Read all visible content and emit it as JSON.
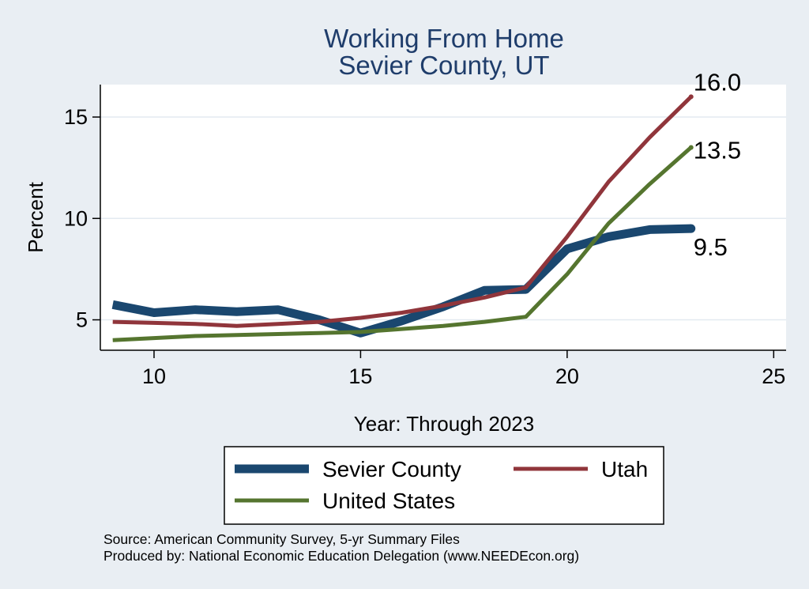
{
  "chart_data": {
    "type": "line",
    "title": [
      "Working From Home",
      "Sevier County, UT"
    ],
    "xlabel": "Year: Through 2023",
    "ylabel": "Percent",
    "xlim": [
      8.7,
      25.3
    ],
    "ylim": [
      3.5,
      16.6
    ],
    "xticks": [
      10,
      15,
      20,
      25
    ],
    "yticks": [
      5,
      10,
      15
    ],
    "grid": true,
    "legend_position": "bottom",
    "x": [
      9,
      10,
      11,
      12,
      13,
      14,
      15,
      16,
      17,
      18,
      19,
      20,
      21,
      22,
      23
    ],
    "series": [
      {
        "name": "Sevier County",
        "color": "#1a476f",
        "width": 11,
        "values": [
          5.75,
          5.35,
          5.5,
          5.4,
          5.5,
          5.0,
          4.35,
          4.95,
          5.65,
          6.45,
          6.5,
          8.5,
          9.1,
          9.45,
          9.5
        ],
        "end_label": "9.5"
      },
      {
        "name": "Utah",
        "color": "#90353b",
        "width": 5,
        "values": [
          4.9,
          4.85,
          4.8,
          4.7,
          4.8,
          4.9,
          5.1,
          5.35,
          5.7,
          6.1,
          6.6,
          9.1,
          11.8,
          14.0,
          16.0
        ],
        "end_label": "16.0"
      },
      {
        "name": "United States",
        "color": "#55752f",
        "width": 5,
        "values": [
          4.0,
          4.1,
          4.2,
          4.25,
          4.3,
          4.35,
          4.4,
          4.55,
          4.7,
          4.9,
          5.15,
          7.25,
          9.75,
          11.7,
          13.5
        ],
        "end_label": "13.5"
      }
    ],
    "legend": {
      "entries": [
        "Sevier County",
        "Utah",
        "United States"
      ]
    },
    "notes": [
      "Source: American Community Survey, 5-yr Summary Files",
      "Produced by: National Economic Education Delegation (www.NEEDEcon.org)"
    ]
  }
}
